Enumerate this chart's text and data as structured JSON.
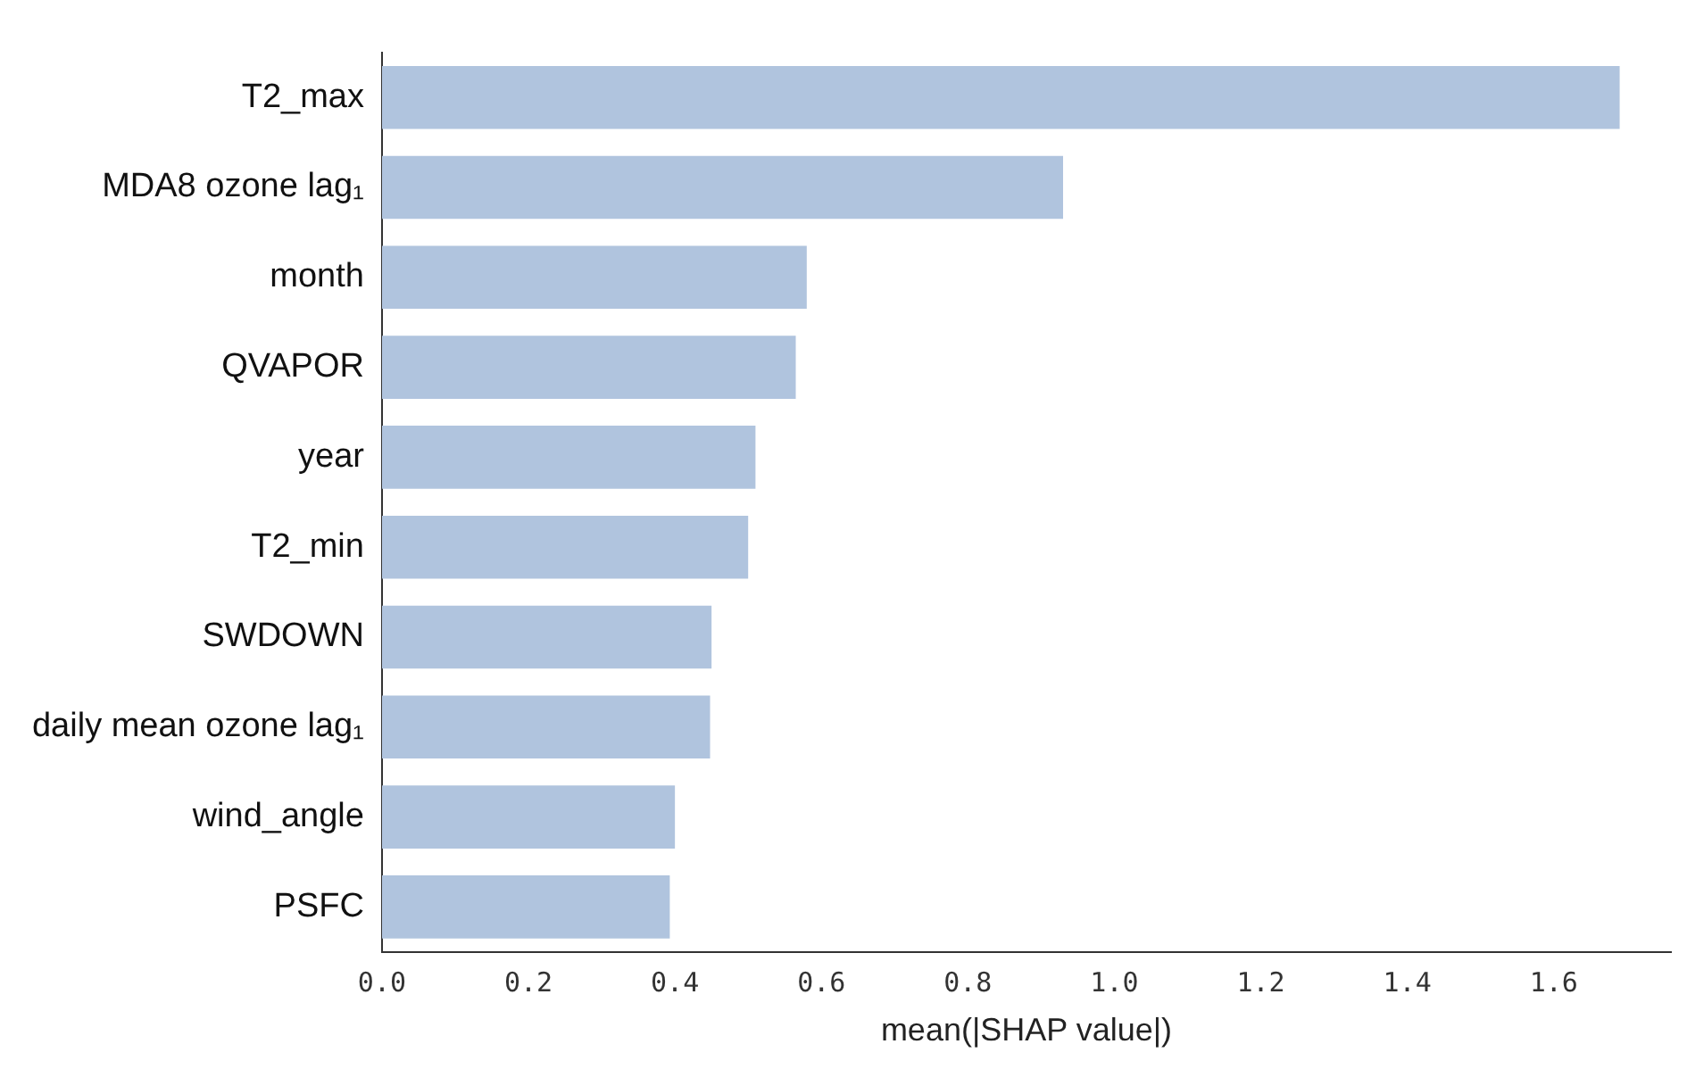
{
  "chart_data": {
    "type": "bar",
    "orientation": "horizontal",
    "xlabel": "mean(|SHAP value|)",
    "categories": [
      "T2_max",
      "MDA8 ozone lag₁",
      "month",
      "QVAPOR",
      "year",
      "T2_min",
      "SWDOWN",
      "daily mean ozone lag₁",
      "wind_angle",
      "PSFC"
    ],
    "values": [
      1.69,
      0.93,
      0.58,
      0.565,
      0.51,
      0.5,
      0.45,
      0.448,
      0.4,
      0.393
    ],
    "color": "#b0c4de",
    "xlim": [
      0,
      1.76
    ],
    "xticks": [
      {
        "value": 0,
        "label": "0.0"
      },
      0.2,
      0.4,
      0.6,
      0.8,
      {
        "value": 1,
        "label": "1.0"
      },
      1.2,
      1.4,
      1.6
    ],
    "grid": false,
    "legend": false
  }
}
